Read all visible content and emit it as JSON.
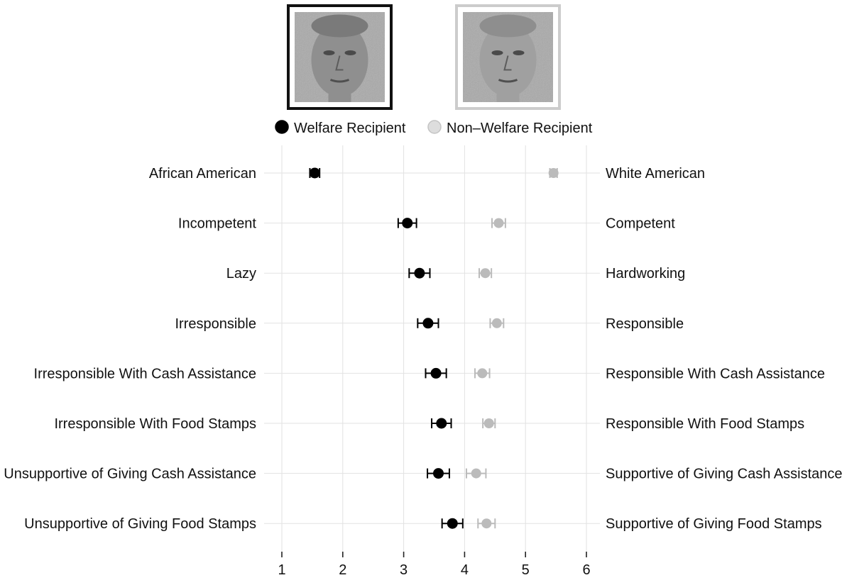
{
  "chart_data": {
    "type": "dot-plot-with-error-bars",
    "title": "",
    "xlim": [
      1,
      6
    ],
    "x_ticks": [
      "1",
      "2",
      "3",
      "4",
      "5",
      "6"
    ],
    "grid": true,
    "legend": {
      "placement": "top-center",
      "entries": [
        "Welfare Recipient",
        "Non–Welfare Recipient"
      ]
    },
    "faces": [
      {
        "series": "Welfare Recipient",
        "frame_color": "#111111"
      },
      {
        "series": "Non–Welfare Recipient",
        "frame_color": "#cccccc"
      }
    ],
    "items": [
      {
        "left": "African American",
        "right": "White American"
      },
      {
        "left": "Incompetent",
        "right": "Competent"
      },
      {
        "left": "Lazy",
        "right": "Hardworking"
      },
      {
        "left": "Irresponsible",
        "right": "Responsible"
      },
      {
        "left": "Irresponsible With Cash Assistance",
        "right": "Responsible With Cash Assistance"
      },
      {
        "left": "Irresponsible With Food Stamps",
        "right": "Responsible With Food Stamps"
      },
      {
        "left": "Unsupportive of Giving Cash Assistance",
        "right": "Supportive of Giving Cash Assistance"
      },
      {
        "left": "Unsupportive of Giving Food Stamps",
        "right": "Supportive of Giving Food Stamps"
      }
    ],
    "series": [
      {
        "name": "Welfare Recipient",
        "color": "#000000",
        "values": [
          1.54,
          3.06,
          3.26,
          3.4,
          3.53,
          3.62,
          3.57,
          3.8
        ],
        "ci_low": [
          1.46,
          2.91,
          3.09,
          3.23,
          3.36,
          3.46,
          3.39,
          3.63
        ],
        "ci_high": [
          1.62,
          3.21,
          3.43,
          3.57,
          3.7,
          3.78,
          3.75,
          3.97
        ]
      },
      {
        "name": "Non–Welfare Recipient",
        "color": "#bbbbbb",
        "values": [
          5.46,
          4.56,
          4.34,
          4.53,
          4.29,
          4.4,
          4.19,
          4.36
        ],
        "ci_low": [
          5.4,
          4.45,
          4.24,
          4.42,
          4.17,
          4.3,
          4.03,
          4.22
        ],
        "ci_high": [
          5.52,
          4.67,
          4.44,
          4.64,
          4.41,
          4.5,
          4.35,
          4.5
        ]
      }
    ]
  }
}
